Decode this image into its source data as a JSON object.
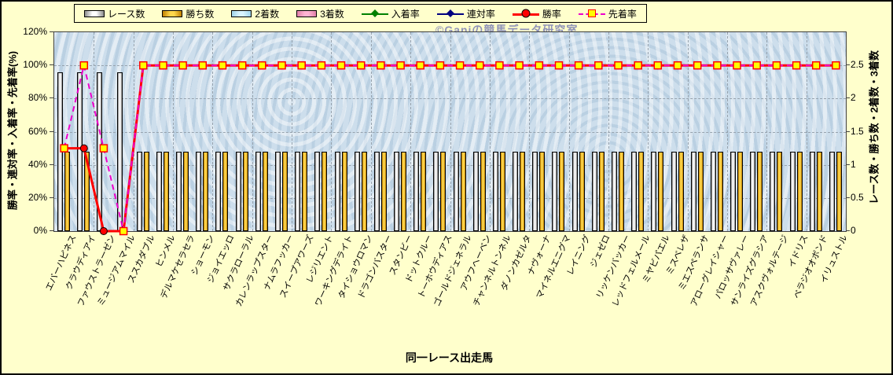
{
  "watermark": "©Ganiの競馬データ研究室",
  "axes": {
    "left_title": "勝率・連対率・入着率・先着率(%)",
    "right_title": "レース数・勝ち数・2着数・3着数",
    "x_title": "同一レース出走馬",
    "left_ticks": [
      "0%",
      "20%",
      "40%",
      "60%",
      "80%",
      "100%",
      "120%"
    ],
    "right_ticks": [
      "0",
      "0.5",
      "1",
      "1.5",
      "2",
      "2.5"
    ]
  },
  "legend": [
    {
      "label": "レース数",
      "type": "bar",
      "fill": "#ffffff",
      "edge": "#8c8c8c"
    },
    {
      "label": "勝ち数",
      "type": "bar",
      "fill": "#ffd84d",
      "edge": "#c08000"
    },
    {
      "label": "2着数",
      "type": "bar",
      "fill": "#d8f4ff",
      "edge": "#9fd4ea"
    },
    {
      "label": "3着数",
      "type": "bar",
      "fill": "#ffb3d2",
      "edge": "#e080a8"
    },
    {
      "label": "入着率",
      "type": "line-diamond",
      "color": "#008000"
    },
    {
      "label": "連対率",
      "type": "line-diamond",
      "color": "#000080"
    },
    {
      "label": "勝率",
      "type": "line-circle",
      "color": "#ff0000"
    },
    {
      "label": "先着率",
      "type": "line-square",
      "color": "#ee00cc",
      "marker_fill": "#ffff00",
      "marker_edge": "#ff0000",
      "dashed": true
    }
  ],
  "chart_data": {
    "type": "bar+line combo",
    "title": "",
    "xlabel": "同一レース出走馬",
    "ylabel_left": "勝率・連対率・入着率・先着率(%)",
    "ylabel_right": "レース数・勝ち数・2着数・3着数",
    "left_range": [
      0,
      120
    ],
    "right_range": [
      0,
      2.5
    ],
    "grid": "dashed horizontal every 20%, dashed vertical every 2 categories",
    "legend_position": "top",
    "categories": [
      "エバーハピネス",
      "クラウディアイ",
      "ファウストラーゼン",
      "ミュージアムマイル",
      "ススカダブル",
      "ヒンメル",
      "デルマケセラセラ",
      "ショーモン",
      "ジョイエッロ",
      "サクラローラル",
      "カレンラップスター",
      "ナムラフッカー",
      "スイープアワーズ",
      "レジリエント",
      "ワーキングデライト",
      "タイショウロマン",
      "ドラゴンバスター",
      "スタンビー",
      "ドットクルー",
      "トーホウディアス",
      "ゴールドジェネラル",
      "アウフヘーベン",
      "チャンネルトンネル",
      "ダノンカゼルタ",
      "ナヴォーナ",
      "マイネルエニグマ",
      "レイニング",
      "ジェゼロ",
      "リッケンバッカー",
      "レッドフェルメール",
      "ミヤビパエル",
      "ミスベレザ",
      "ミエスペランサ",
      "アローグレイシャー",
      "パロッサヴァレー",
      "サンライズグラシア",
      "アスクヴォルテージ",
      "イドリス",
      "ベラジオオボンド",
      "イリュストル"
    ],
    "series": [
      {
        "key": "races",
        "name": "レース数",
        "type": "bar",
        "axis": "right",
        "slot": 0,
        "fill": "#ffffff",
        "edge": "#8c8c8c",
        "values": [
          2,
          2,
          2,
          2,
          1,
          1,
          1,
          1,
          1,
          1,
          1,
          1,
          1,
          1,
          1,
          1,
          1,
          1,
          1,
          1,
          1,
          1,
          1,
          1,
          1,
          1,
          1,
          1,
          1,
          1,
          1,
          1,
          1,
          1,
          1,
          1,
          1,
          1,
          1,
          1
        ]
      },
      {
        "key": "wins",
        "name": "勝ち数",
        "type": "bar",
        "axis": "right",
        "slot": 1,
        "fill": "#ffd84d",
        "edge": "#c08000",
        "values": [
          1,
          1,
          0,
          0,
          1,
          1,
          1,
          1,
          1,
          1,
          1,
          1,
          1,
          1,
          1,
          1,
          1,
          1,
          1,
          1,
          1,
          1,
          1,
          1,
          1,
          1,
          1,
          1,
          1,
          1,
          1,
          1,
          1,
          1,
          1,
          1,
          1,
          1,
          1,
          1
        ]
      },
      {
        "key": "second",
        "name": "2着数",
        "type": "bar",
        "axis": "right",
        "slot": 2,
        "fill": "#d8f4ff",
        "edge": "#9fd4ea",
        "values": [
          0,
          0,
          0,
          0,
          0,
          0,
          0,
          0,
          0,
          0,
          0,
          0,
          0,
          0,
          0,
          0,
          0,
          0,
          0,
          0,
          0,
          0,
          0,
          0,
          0,
          0,
          0,
          0,
          0,
          0,
          0,
          0,
          0,
          0,
          0,
          0,
          0,
          0,
          0,
          0
        ]
      },
      {
        "key": "third",
        "name": "3着数",
        "type": "bar",
        "axis": "right",
        "slot": 3,
        "fill": "#ffb3d2",
        "edge": "#e080a8",
        "values": [
          0,
          0,
          0,
          0,
          0,
          0,
          0,
          0,
          0,
          0,
          0,
          0,
          0,
          0,
          0,
          0,
          0,
          0,
          0,
          0,
          0,
          0,
          0,
          0,
          0,
          0,
          0,
          0,
          0,
          0,
          0,
          0,
          0,
          0,
          0,
          0,
          0,
          0,
          0,
          0
        ]
      },
      {
        "key": "win_rate",
        "name": "勝率",
        "type": "line",
        "axis": "left",
        "color": "#ff0000",
        "marker": "circle",
        "values": [
          50,
          50,
          0,
          0,
          100,
          100,
          100,
          100,
          100,
          100,
          100,
          100,
          100,
          100,
          100,
          100,
          100,
          100,
          100,
          100,
          100,
          100,
          100,
          100,
          100,
          100,
          100,
          100,
          100,
          100,
          100,
          100,
          100,
          100,
          100,
          100,
          100,
          100,
          100,
          100
        ]
      },
      {
        "key": "first_arrival_rate",
        "name": "先着率",
        "type": "line",
        "axis": "left",
        "color": "#ee00cc",
        "dashed": true,
        "marker": "square",
        "marker_fill": "#ffff00",
        "marker_edge": "#ff0000",
        "values": [
          50,
          100,
          50,
          0,
          100,
          100,
          100,
          100,
          100,
          100,
          100,
          100,
          100,
          100,
          100,
          100,
          100,
          100,
          100,
          100,
          100,
          100,
          100,
          100,
          100,
          100,
          100,
          100,
          100,
          100,
          100,
          100,
          100,
          100,
          100,
          100,
          100,
          100,
          100,
          100
        ]
      }
    ],
    "series_in_legend_not_separately_visible": [
      "入着率",
      "連対率"
    ]
  }
}
